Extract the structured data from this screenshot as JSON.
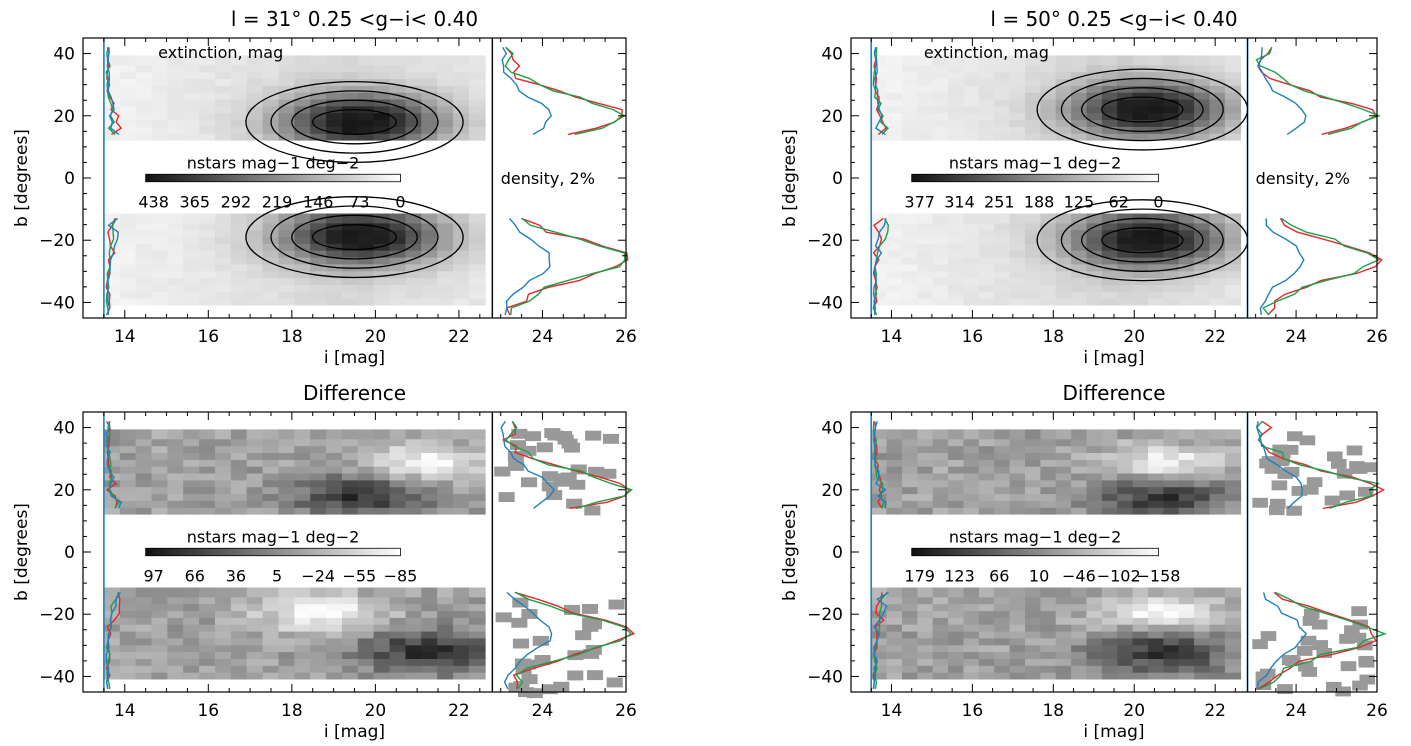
{
  "colors": {
    "red": "#e8262b",
    "green": "#1aa04a",
    "blue": "#1f7fc0",
    "frame": "#000000"
  },
  "chart_data": [
    {
      "type": "heatmap",
      "title": "l = 31°   0.25 <g−i< 0.40",
      "xlabel": "i [mag]",
      "ylabel": "b [degrees]",
      "xlim": [
        13,
        26
      ],
      "ylim": [
        -45,
        45
      ],
      "xticks": [
        "14",
        "16",
        "18",
        "20",
        "22",
        "24",
        "26"
      ],
      "yticks": [
        "40",
        "20",
        "0",
        "−20",
        "−40"
      ],
      "annotation_top": "extinction, mag",
      "annotation_right": "density, 2%",
      "colorbar_label": "nstars mag−1 deg−2",
      "colorbar_values": [
        "438",
        "365",
        "292",
        "219",
        "146",
        "73",
        "0"
      ],
      "map_center": {
        "x": 19.5,
        "b_north": 18,
        "b_south": -19
      },
      "vertical_line_x": [
        13.5,
        22.8
      ]
    },
    {
      "type": "heatmap",
      "title": "l = 50°   0.25 <g−i< 0.40",
      "xlabel": "i [mag]",
      "ylabel": "b [degrees]",
      "xlim": [
        13,
        26
      ],
      "ylim": [
        -45,
        45
      ],
      "xticks": [
        "14",
        "16",
        "18",
        "20",
        "22",
        "24",
        "26"
      ],
      "yticks": [
        "40",
        "20",
        "0",
        "−20",
        "−40"
      ],
      "annotation_top": "extinction, mag",
      "annotation_right": "density, 2%",
      "colorbar_label": "nstars mag−1 deg−2",
      "colorbar_values": [
        "377",
        "314",
        "251",
        "188",
        "125",
        "62",
        "0"
      ],
      "map_center": {
        "x": 20.2,
        "b_north": 22,
        "b_south": -20
      },
      "vertical_line_x": [
        13.5,
        22.8
      ]
    },
    {
      "type": "heatmap",
      "title": "Difference",
      "xlabel": "i [mag]",
      "ylabel": "b [degrees]",
      "xlim": [
        13,
        26
      ],
      "ylim": [
        -45,
        45
      ],
      "xticks": [
        "14",
        "16",
        "18",
        "20",
        "22",
        "24",
        "26"
      ],
      "yticks": [
        "40",
        "20",
        "0",
        "−20",
        "−40"
      ],
      "colorbar_label": "nstars mag−1 deg−2",
      "colorbar_values": [
        "97",
        "66",
        "36",
        "5",
        "−24",
        "−55",
        "−85"
      ],
      "vertical_line_x": [
        13.5,
        22.8
      ]
    },
    {
      "type": "heatmap",
      "title": "Difference",
      "xlabel": "i [mag]",
      "ylabel": "b [degrees]",
      "xlim": [
        13,
        26
      ],
      "ylim": [
        -45,
        45
      ],
      "xticks": [
        "14",
        "16",
        "18",
        "20",
        "22",
        "24",
        "26"
      ],
      "yticks": [
        "40",
        "20",
        "0",
        "−20",
        "−40"
      ],
      "colorbar_label": "nstars mag−1 deg−2",
      "colorbar_values": [
        "179",
        "123",
        "66",
        "10",
        "−46",
        "−102",
        "−158"
      ],
      "vertical_line_x": [
        13.5,
        22.8
      ]
    }
  ]
}
